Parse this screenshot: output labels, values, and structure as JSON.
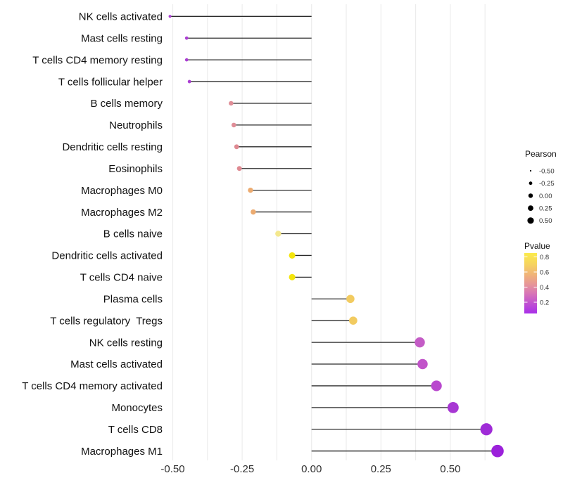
{
  "figure": {
    "background": "#FFFFFF",
    "grid_color": "#ECECEC",
    "stem_color": "#2B2B2B",
    "label_color": "#111111",
    "axis_text_color": "#303030",
    "legend_text_color": "#303030"
  },
  "chart_data": {
    "type": "scatter",
    "variant": "lollipop",
    "orientation": "horizontal",
    "title": "",
    "xlabel": "",
    "ylabel": "",
    "grid": true,
    "legend_position": "right",
    "xlim": [
      -0.524,
      0.708
    ],
    "x_ticks": [
      "-0.50",
      "-0.25",
      "0.00",
      "0.25",
      "0.50"
    ],
    "x_tick_values": [
      -0.5,
      -0.25,
      0,
      0.25,
      0.5
    ],
    "gridline_values": [
      -0.5,
      -0.375,
      -0.25,
      -0.125,
      0,
      0.125,
      0.25,
      0.375,
      0.5,
      0.625
    ],
    "categories": [
      "NK cells activated",
      "Mast cells resting",
      "T cells CD4 memory resting",
      "T cells follicular helper",
      "B cells memory",
      "Neutrophils",
      "Dendritic cells resting",
      "Eosinophils",
      "Macrophages M0",
      "Macrophages M2",
      "B cells naive",
      "Dendritic cells activated",
      "T cells CD4 naive",
      "Plasma cells",
      "T cells regulatory  Tregs",
      "NK cells resting",
      "Mast cells activated",
      "T cells CD4 memory activated",
      "Monocytes",
      "T cells CD8",
      "Macrophages M1"
    ],
    "series": [
      {
        "name": "Pearson",
        "values": [
          -0.51,
          -0.45,
          -0.45,
          -0.44,
          -0.29,
          -0.28,
          -0.27,
          -0.26,
          -0.22,
          -0.21,
          -0.12,
          -0.07,
          -0.07,
          0.14,
          0.15,
          0.39,
          0.4,
          0.45,
          0.51,
          0.63,
          0.67
        ]
      }
    ],
    "pvalues_estimated": [
      0.13,
      0.13,
      0.13,
      0.13,
      0.45,
      0.45,
      0.43,
      0.43,
      0.55,
      0.55,
      0.75,
      0.8,
      0.8,
      0.65,
      0.65,
      0.27,
      0.25,
      0.21,
      0.1,
      0.08,
      0.05
    ],
    "dot_colors": [
      "#A93ED2",
      "#AB3ED3",
      "#AB3ED3",
      "#AB3ED3",
      "#E08E98",
      "#E08E98",
      "#DF8A92",
      "#DF8A92",
      "#ECAB70",
      "#ECAB70",
      "#F4E88E",
      "#F4E50C",
      "#F4E50C",
      "#F2CB60",
      "#F2CB60",
      "#C45CC6",
      "#C153C9",
      "#B948CE",
      "#A737D3",
      "#9F2BD7",
      "#9B21DA"
    ]
  },
  "legend_size": {
    "title": "Pearson",
    "entries": [
      "-0.50",
      "-0.25",
      "0.00",
      "0.25",
      "0.50"
    ],
    "entry_values": [
      -0.5,
      -0.25,
      0,
      0.25,
      0.5
    ],
    "dot_color": "#000000"
  },
  "legend_color": {
    "title": "Pvalue",
    "ticks": [
      "0.8",
      "0.6",
      "0.4",
      "0.2"
    ],
    "tick_values": [
      0.8,
      0.6,
      0.4,
      0.2
    ],
    "range": [
      0.05,
      0.85
    ],
    "gradient_stops": [
      [
        "0%",
        "#FBEB4B"
      ],
      [
        "18%",
        "#F6D45F"
      ],
      [
        "38%",
        "#EFAF7C"
      ],
      [
        "52%",
        "#E69599"
      ],
      [
        "66%",
        "#D977B5"
      ],
      [
        "82%",
        "#C254CF"
      ],
      [
        "100%",
        "#A92FE9"
      ]
    ]
  }
}
